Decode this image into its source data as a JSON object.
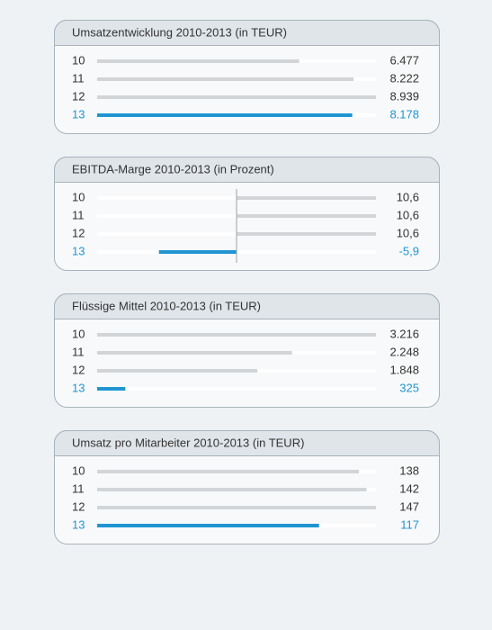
{
  "chart_data": [
    {
      "type": "bar",
      "title": "Umsatzentwicklung 2010-2013 (in TEUR)",
      "categories": [
        "10",
        "11",
        "12",
        "13"
      ],
      "values": [
        6477,
        8222,
        8939,
        8178
      ],
      "value_labels": [
        "6.477",
        "8.222",
        "8.939",
        "8.178"
      ],
      "color": "#d2d5d8",
      "highlight_color": "#1f95d2",
      "highlight_index": 3
    },
    {
      "type": "bar",
      "title": "EBITDA-Marge 2010-2013 (in Prozent)",
      "categories": [
        "10",
        "11",
        "12",
        "13"
      ],
      "values": [
        10.6,
        10.6,
        10.6,
        -5.9
      ],
      "value_labels": [
        "10,6",
        "10,6",
        "10,6",
        "-5,9"
      ],
      "color": "#d2d5d8",
      "highlight_color": "#1f95d2",
      "highlight_index": 3
    },
    {
      "type": "bar",
      "title": "Flüssige Mittel 2010-2013 (in TEUR)",
      "categories": [
        "10",
        "11",
        "12",
        "13"
      ],
      "values": [
        3216,
        2248,
        1848,
        325
      ],
      "value_labels": [
        "3.216",
        "2.248",
        "1.848",
        "325"
      ],
      "color": "#d2d5d8",
      "highlight_color": "#1f95d2",
      "highlight_index": 3
    },
    {
      "type": "bar",
      "title": "Umsatz pro Mitarbeiter 2010-2013 (in TEUR)",
      "categories": [
        "10",
        "11",
        "12",
        "13"
      ],
      "values": [
        138,
        142,
        147,
        117
      ],
      "color": "#d2d5d8",
      "highlight_color": "#1f95d2",
      "highlight_index": 3
    }
  ]
}
